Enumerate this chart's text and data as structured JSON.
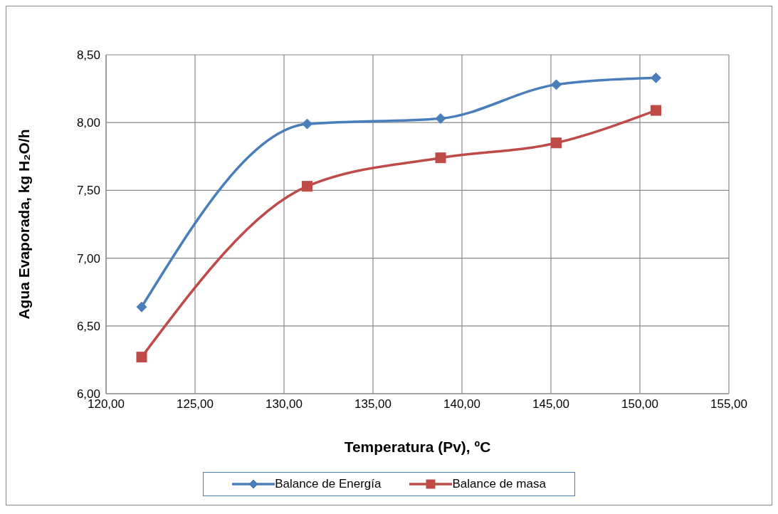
{
  "chart_data": {
    "type": "line",
    "xlabel": "Temperatura (Pv), ºC",
    "ylabel": "Agua Evaporada, kg H₂O/h",
    "xlim": [
      120,
      155
    ],
    "xticks": [
      {
        "value": 120,
        "label": "120,00"
      },
      {
        "value": 125,
        "label": "125,00"
      },
      {
        "value": 130,
        "label": "130,00"
      },
      {
        "value": 135,
        "label": "135,00"
      },
      {
        "value": 140,
        "label": "140,00"
      },
      {
        "value": 145,
        "label": "145,00"
      },
      {
        "value": 150,
        "label": "150,00"
      },
      {
        "value": 155,
        "label": "155,00"
      }
    ],
    "ylim": [
      6,
      8.5
    ],
    "yticks": [
      {
        "value": 6,
        "label": "6,00"
      },
      {
        "value": 6.5,
        "label": "6,50"
      },
      {
        "value": 7,
        "label": "7,00"
      },
      {
        "value": 7.5,
        "label": "7,50"
      },
      {
        "value": 8,
        "label": "8,00"
      },
      {
        "value": 8.5,
        "label": "8,50"
      }
    ],
    "x": [
      122.0,
      131.3,
      138.8,
      145.3,
      150.9
    ],
    "series": [
      {
        "name": "Balance de Energía",
        "color": "#4a7ebb",
        "marker": "diamond",
        "values": [
          6.64,
          7.99,
          8.03,
          8.28,
          8.33
        ]
      },
      {
        "name": "Balance de masa",
        "color": "#be4b48",
        "marker": "square",
        "values": [
          6.27,
          7.53,
          7.74,
          7.85,
          8.09
        ]
      }
    ],
    "grid": true,
    "legend": "bottom",
    "line_style": "solid"
  }
}
